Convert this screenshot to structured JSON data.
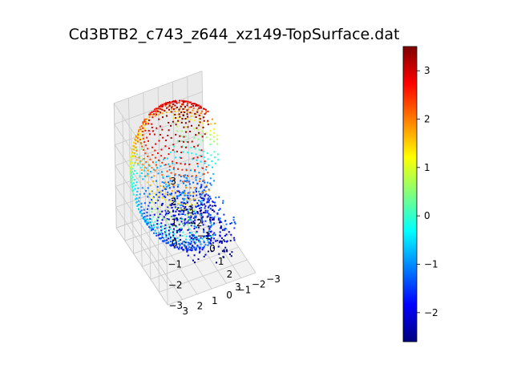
{
  "chart_data": {
    "type": "scatter",
    "projection": "3d",
    "title": "Cd3BTB2_c743_z644_xz149-TopSurface.dat",
    "xlabel": "",
    "ylabel": "",
    "zlabel": "",
    "xlim": [
      -3,
      3
    ],
    "ylim": [
      -3,
      3
    ],
    "zlim": [
      -3,
      3
    ],
    "x_ticks": [
      "−3",
      "−2",
      "−1",
      "0",
      "1",
      "2",
      "3"
    ],
    "y_ticks": [
      "−3",
      "−2",
      "−1",
      "0",
      "1",
      "2",
      "3"
    ],
    "z_ticks": [
      "−3",
      "−2",
      "−1",
      "0",
      "1",
      "2",
      "3"
    ],
    "grid": true,
    "colormap": "jet",
    "color_by": "z",
    "colorbar": {
      "range": [
        -2.6,
        3.5
      ],
      "ticks": [
        "−2",
        "−1",
        "0",
        "1",
        "2",
        "3"
      ],
      "tick_values": [
        -2,
        -1,
        0,
        1,
        2,
        3
      ],
      "placement": "right"
    },
    "surface": {
      "shape": "spherical-cap shell with circular opening facing the viewer",
      "radius": 3.2,
      "z_min": -2.6,
      "z_max": 3.5,
      "azimuth_gap_deg": [
        -110,
        -5
      ],
      "polar_gap_deg": [
        30,
        175
      ],
      "lower_region_shown": "rough bottom patch from z≈-2.6 to z≈0"
    }
  }
}
